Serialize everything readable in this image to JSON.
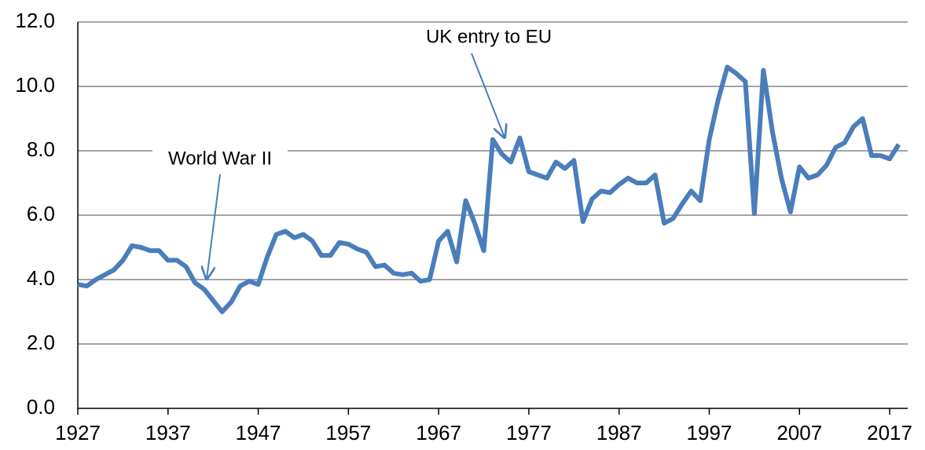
{
  "chart_data": {
    "type": "line",
    "x": [
      1927,
      1928,
      1929,
      1930,
      1931,
      1932,
      1933,
      1934,
      1935,
      1936,
      1937,
      1938,
      1939,
      1940,
      1941,
      1942,
      1943,
      1944,
      1945,
      1946,
      1947,
      1948,
      1949,
      1950,
      1951,
      1952,
      1953,
      1954,
      1955,
      1956,
      1957,
      1958,
      1959,
      1960,
      1961,
      1962,
      1963,
      1964,
      1965,
      1966,
      1967,
      1968,
      1969,
      1970,
      1971,
      1972,
      1973,
      1974,
      1975,
      1976,
      1977,
      1978,
      1979,
      1980,
      1981,
      1982,
      1983,
      1984,
      1985,
      1986,
      1987,
      1988,
      1989,
      1990,
      1991,
      1992,
      1993,
      1994,
      1995,
      1996,
      1997,
      1998,
      1999,
      2000,
      2001,
      2002,
      2003,
      2004,
      2005,
      2006,
      2007,
      2008,
      2009,
      2010,
      2011,
      2012,
      2013,
      2014,
      2015,
      2016,
      2017,
      2018
    ],
    "series": [
      {
        "color": "#4a7ebb",
        "values": [
          3.85,
          3.8,
          4.0,
          4.15,
          4.3,
          4.6,
          5.05,
          5.0,
          4.9,
          4.9,
          4.6,
          4.6,
          4.4,
          3.9,
          3.7,
          3.35,
          3.0,
          3.3,
          3.8,
          3.95,
          3.85,
          4.7,
          5.4,
          5.5,
          5.3,
          5.4,
          5.2,
          4.75,
          4.75,
          5.15,
          5.1,
          4.95,
          4.85,
          4.4,
          4.45,
          4.2,
          4.15,
          4.2,
          3.95,
          4.0,
          5.2,
          5.5,
          4.55,
          6.45,
          5.75,
          4.9,
          8.35,
          7.9,
          7.65,
          8.4,
          7.35,
          7.25,
          7.15,
          7.65,
          7.45,
          7.7,
          5.8,
          6.5,
          6.75,
          6.7,
          6.95,
          7.15,
          7.0,
          7.0,
          7.25,
          5.75,
          5.9,
          6.35,
          6.75,
          6.45,
          8.35,
          9.6,
          10.6,
          10.4,
          10.15,
          6.05,
          10.5,
          8.6,
          7.15,
          6.1,
          7.5,
          7.15,
          7.25,
          7.55,
          8.1,
          8.25,
          8.75,
          9.0,
          7.85,
          7.85,
          7.75,
          8.2
        ]
      }
    ],
    "xlim": [
      1927,
      2019
    ],
    "xticks": [
      1927,
      1937,
      1947,
      1957,
      1967,
      1977,
      1987,
      1997,
      2007,
      2017
    ],
    "ylim": [
      0,
      12
    ],
    "yticks": [
      {
        "value": 0,
        "label": "0.0"
      },
      {
        "value": 2,
        "label": "2.0"
      },
      {
        "value": 4,
        "label": "4.0"
      },
      {
        "value": 6,
        "label": "6.0"
      },
      {
        "value": 8,
        "label": "8.0"
      },
      {
        "value": 10,
        "label": "10.0"
      },
      {
        "value": 12,
        "label": "12.0"
      }
    ],
    "grid": true,
    "annotations": [
      "World War II",
      "UK entry to EU"
    ]
  }
}
